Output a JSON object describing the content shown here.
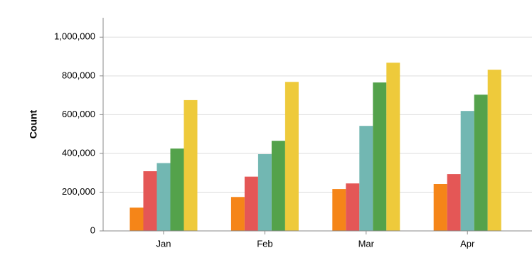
{
  "chart_data": {
    "type": "bar",
    "y_label": "Count",
    "categories": [
      "Jan",
      "Feb",
      "Mar",
      "Apr"
    ],
    "series": [
      {
        "color": "#f58518",
        "values": [
          120000,
          175000,
          216000,
          242000
        ]
      },
      {
        "color": "#e45756",
        "values": [
          308000,
          280000,
          245000,
          293000
        ]
      },
      {
        "color": "#72b7b2",
        "values": [
          350000,
          396000,
          542000,
          619000
        ]
      },
      {
        "color": "#54a24b",
        "values": [
          425000,
          465000,
          766000,
          703000
        ]
      },
      {
        "color": "#eeca3b",
        "values": [
          675000,
          769000,
          868000,
          832000
        ]
      }
    ],
    "ylim": [
      0,
      1100000
    ],
    "yticks": [
      0,
      {
        "value": 200000,
        "label": "200,000"
      },
      {
        "value": 400000,
        "label": "400,000"
      },
      {
        "value": 600000,
        "label": "600,000"
      },
      {
        "value": 800000,
        "label": "800,000"
      },
      {
        "value": 1000000,
        "label": "1,000,000"
      }
    ],
    "grid": true
  }
}
